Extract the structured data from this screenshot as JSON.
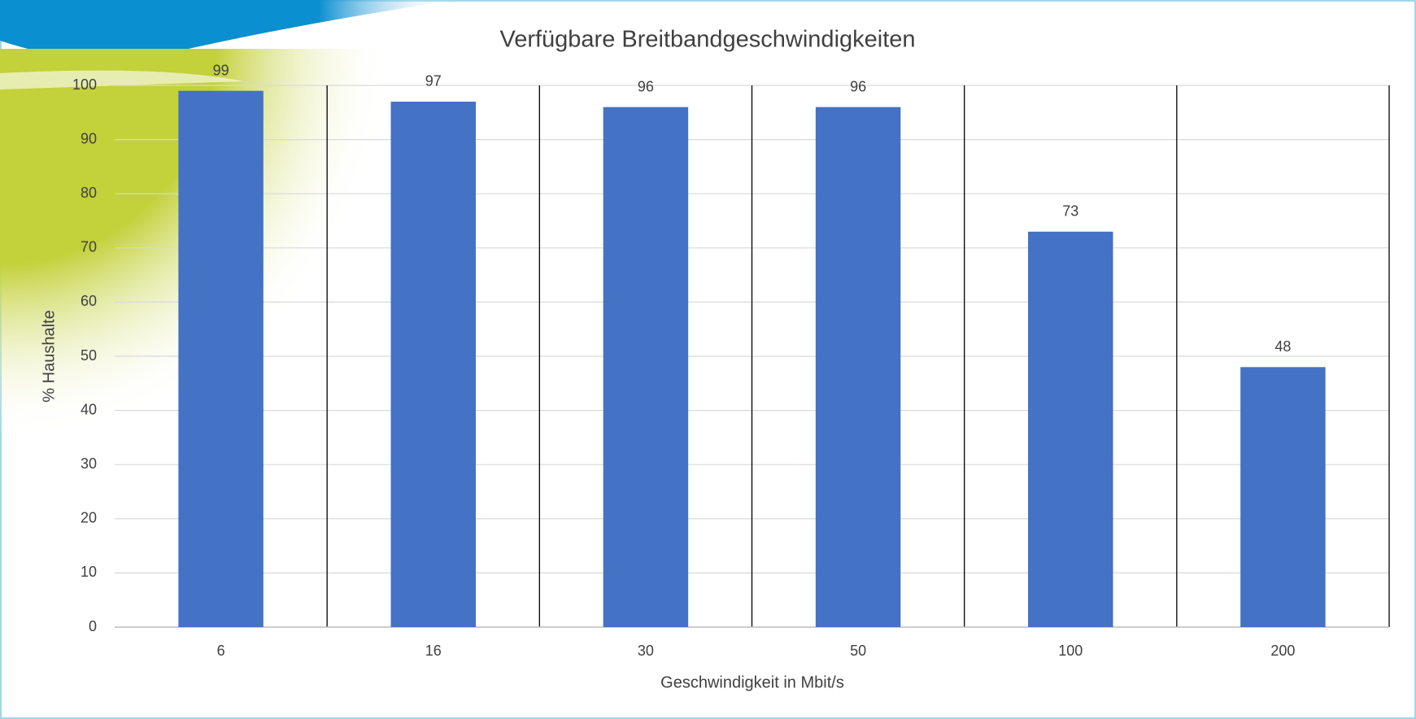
{
  "chart_data": {
    "type": "bar",
    "title": "Verfügbare Breitbandgeschwindigkeiten",
    "x_label": "Geschwindigkeit in Mbit/s",
    "y_label": "% Haushalte",
    "categories": [
      "6",
      "16",
      "30",
      "50",
      "100",
      "200"
    ],
    "values": [
      99,
      97,
      96,
      96,
      73,
      48
    ],
    "color": "#4472c4",
    "ylim": [
      0,
      100
    ],
    "yticks": [
      0,
      10,
      20,
      30,
      40,
      50,
      60,
      70,
      80,
      90,
      100
    ],
    "grid": true
  }
}
